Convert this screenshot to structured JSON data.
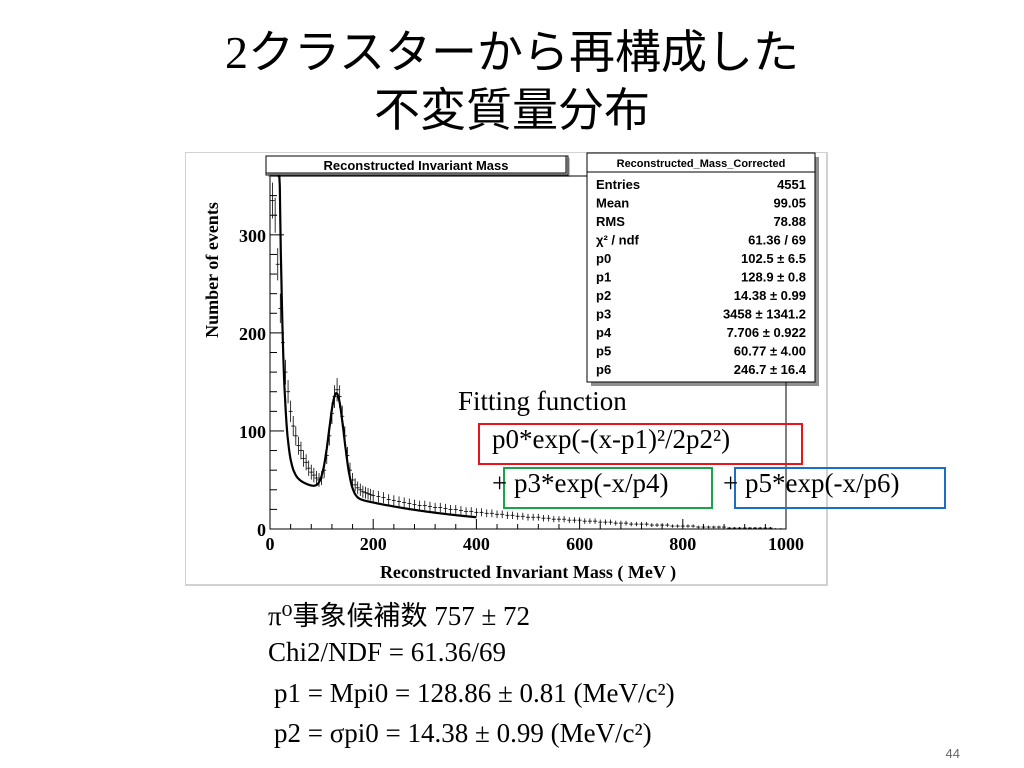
{
  "slide": {
    "title_line1": "2クラスターから再構成した",
    "title_line2": "不変質量分布",
    "page_number": "44"
  },
  "chart_data": {
    "type": "scatter",
    "title": "Reconstructed Invariant Mass",
    "xlabel": "Reconstructed Invariant Mass ( MeV )",
    "ylabel": "Number of events",
    "xlim": [
      0,
      1000
    ],
    "ylim": [
      0,
      360
    ],
    "x_ticks": [
      "0",
      "200",
      "400",
      "600",
      "800",
      "1000"
    ],
    "y_ticks": [
      "0",
      "100",
      "200",
      "300"
    ],
    "points": [
      [
        5,
        335
      ],
      [
        10,
        320
      ],
      [
        15,
        270
      ],
      [
        20,
        225
      ],
      [
        25,
        190
      ],
      [
        30,
        160
      ],
      [
        35,
        140
      ],
      [
        40,
        120
      ],
      [
        45,
        105
      ],
      [
        50,
        95
      ],
      [
        55,
        85
      ],
      [
        60,
        80
      ],
      [
        65,
        72
      ],
      [
        70,
        68
      ],
      [
        75,
        62
      ],
      [
        80,
        58
      ],
      [
        85,
        55
      ],
      [
        90,
        52
      ],
      [
        95,
        50
      ],
      [
        100,
        52
      ],
      [
        105,
        60
      ],
      [
        110,
        75
      ],
      [
        115,
        95
      ],
      [
        120,
        118
      ],
      [
        125,
        135
      ],
      [
        130,
        142
      ],
      [
        135,
        135
      ],
      [
        140,
        115
      ],
      [
        145,
        95
      ],
      [
        150,
        75
      ],
      [
        155,
        60
      ],
      [
        160,
        50
      ],
      [
        165,
        45
      ],
      [
        170,
        42
      ],
      [
        175,
        40
      ],
      [
        180,
        38
      ],
      [
        185,
        37
      ],
      [
        190,
        36
      ],
      [
        195,
        35
      ],
      [
        200,
        34
      ],
      [
        210,
        33
      ],
      [
        220,
        32
      ],
      [
        230,
        30
      ],
      [
        240,
        29
      ],
      [
        250,
        28
      ],
      [
        260,
        27
      ],
      [
        270,
        26
      ],
      [
        280,
        25
      ],
      [
        290,
        24
      ],
      [
        300,
        24
      ],
      [
        310,
        23
      ],
      [
        320,
        22
      ],
      [
        330,
        22
      ],
      [
        340,
        21
      ],
      [
        350,
        20
      ],
      [
        360,
        20
      ],
      [
        370,
        19
      ],
      [
        380,
        18
      ],
      [
        390,
        18
      ],
      [
        400,
        17
      ],
      [
        410,
        17
      ],
      [
        420,
        16
      ],
      [
        430,
        16
      ],
      [
        440,
        15
      ],
      [
        450,
        15
      ],
      [
        460,
        14
      ],
      [
        470,
        14
      ],
      [
        480,
        13
      ],
      [
        490,
        13
      ],
      [
        500,
        12
      ],
      [
        510,
        12
      ],
      [
        520,
        12
      ],
      [
        530,
        11
      ],
      [
        540,
        11
      ],
      [
        550,
        10
      ],
      [
        560,
        10
      ],
      [
        570,
        10
      ],
      [
        580,
        9
      ],
      [
        590,
        9
      ],
      [
        600,
        9
      ],
      [
        610,
        8
      ],
      [
        620,
        8
      ],
      [
        630,
        8
      ],
      [
        640,
        7
      ],
      [
        650,
        7
      ],
      [
        660,
        7
      ],
      [
        670,
        6
      ],
      [
        680,
        6
      ],
      [
        690,
        6
      ],
      [
        700,
        5
      ],
      [
        710,
        5
      ],
      [
        720,
        5
      ],
      [
        730,
        5
      ],
      [
        740,
        4
      ],
      [
        750,
        4
      ],
      [
        760,
        4
      ],
      [
        770,
        4
      ],
      [
        780,
        3
      ],
      [
        790,
        3
      ],
      [
        800,
        3
      ],
      [
        810,
        3
      ],
      [
        820,
        3
      ],
      [
        830,
        2
      ],
      [
        840,
        2
      ],
      [
        850,
        2
      ],
      [
        860,
        2
      ],
      [
        870,
        2
      ],
      [
        880,
        2
      ],
      [
        890,
        1
      ],
      [
        900,
        1
      ],
      [
        910,
        1
      ],
      [
        920,
        1
      ],
      [
        930,
        1
      ],
      [
        940,
        1
      ],
      [
        950,
        1
      ],
      [
        960,
        1
      ],
      [
        970,
        1
      ],
      [
        980,
        0
      ],
      [
        990,
        0
      ]
    ],
    "fit_range": [
      15,
      400
    ],
    "fit_function": {
      "p0": 102.5,
      "p1": 128.9,
      "p2": 14.38,
      "p3": 3458,
      "p4": 7.706,
      "p5": 60.77,
      "p6": 246.7
    },
    "stats": {
      "name": "Reconstructed_Mass_Corrected",
      "rows": [
        {
          "label": "Entries",
          "value": "4551"
        },
        {
          "label": "Mean",
          "value": "99.05"
        },
        {
          "label": "RMS",
          "value": "78.88"
        },
        {
          "label": "χ² / ndf",
          "value": "61.36 / 69"
        },
        {
          "label": "p0",
          "value": "102.5 ± 6.5"
        },
        {
          "label": "p1",
          "value": "128.9 ± 0.8"
        },
        {
          "label": "p2",
          "value": "14.38 ± 0.99"
        },
        {
          "label": "p3",
          "value": "3458 ± 1341.2"
        },
        {
          "label": "p4",
          "value": "7.706 ± 0.922"
        },
        {
          "label": "p5",
          "value": "60.77 ± 4.00"
        },
        {
          "label": "p6",
          "value": "246.7 ± 16.4"
        }
      ]
    },
    "annotation": {
      "label": "Fitting function",
      "term1": "p0*exp(-(x-p1)²/2p2²)",
      "term2": "+ p3*exp(-x/p4)",
      "term3": "+ p5*exp(-x/p6)",
      "term1_color": "#e8141c",
      "term2_color": "#1aa34a",
      "term3_color": "#1a6fc4"
    }
  },
  "results": {
    "line1": "π⁰事象候補数   757 ± 72",
    "line2": "Chi2/NDF = 61.36/69",
    "line3": "p1 = Mpi0 = 128.86 ± 0.81 (MeV/c²)",
    "line4": "p2 = σpi0  =   14.38 ± 0.99 (MeV/c²)"
  }
}
